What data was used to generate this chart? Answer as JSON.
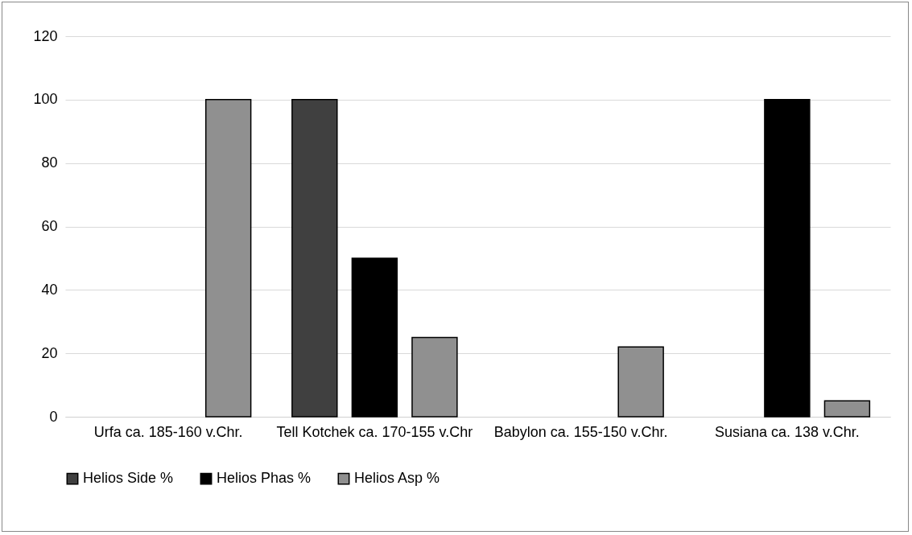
{
  "chart_data": {
    "type": "bar",
    "categories": [
      "Urfa ca. 185-160 v.Chr.",
      "Tell Kotchek ca. 170-155 v.Chr",
      "Babylon ca. 155-150 v.Chr.",
      "Susiana ca. 138 v.Chr."
    ],
    "series": [
      {
        "name": "Helios Side %",
        "color": "#404040",
        "values": [
          null,
          100,
          null,
          null
        ]
      },
      {
        "name": "Helios Phas %",
        "color": "#000000",
        "values": [
          null,
          50,
          null,
          100
        ]
      },
      {
        "name": "Helios Asp %",
        "color": "#909090",
        "values": [
          100,
          25,
          22,
          5
        ]
      }
    ],
    "ylim": [
      0,
      120
    ],
    "yticks": [
      0,
      20,
      40,
      60,
      80,
      100,
      120
    ],
    "grid": "y",
    "legend": "bottom"
  }
}
